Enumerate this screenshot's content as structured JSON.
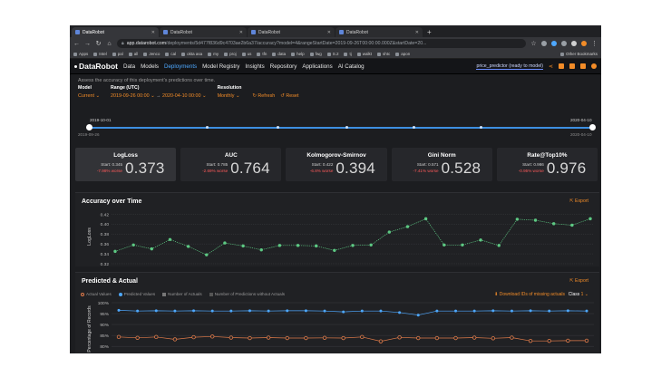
{
  "browser": {
    "tabs": [
      {
        "label": "DataRobot",
        "active": true
      },
      {
        "label": "DataRobot",
        "active": false
      },
      {
        "label": "DataRobot",
        "active": false
      },
      {
        "label": "DataRobot",
        "active": false
      }
    ],
    "new_tab": "+",
    "url_host": "app.datarobot.com",
    "url_path": "/deployments/5d477f836d9c4703ae2b6a37/accuracy?model=4&rangeStartDate=2019-09-26T00:00:00.000Z&startDate=20...",
    "bookmarks": [
      "Apps",
      "Intel",
      "pal",
      "all",
      "Jenco",
      "cal",
      "okta asa",
      "my",
      "proj",
      "us",
      "tfn",
      "data",
      "help",
      "fwg",
      "S.2",
      "tj",
      "walkt",
      "shtc",
      "apon"
    ],
    "bookmarks_other": "Other Bookmarks"
  },
  "app": {
    "logo": "DataRobot",
    "nav": [
      "Data",
      "Models",
      "Deployments",
      "Model Registry",
      "Insights",
      "Repository",
      "Applications",
      "AI Catalog"
    ],
    "active_nav": "Deployments",
    "deployment_name": "price_predictor (ready to model)",
    "accent": "#f28c28"
  },
  "page": {
    "description": "Assess the accuracy of this deployment's predictions over time.",
    "model_label": "Model",
    "model_value": "Current",
    "range_label": "Range (UTC)",
    "range_start": "2019-09-26  00:00",
    "range_arrow": "→",
    "range_end": "2020-04-10  00:00",
    "resolution_label": "Resolution",
    "resolution_value": "Monthly",
    "refresh_label": "Refresh",
    "reset_label": "Reset",
    "slider_start_top": "2019-10-01",
    "slider_start_bottom": "2019-09-26",
    "slider_end_top": "2020-04-10",
    "slider_end_bottom": "2020-04-10"
  },
  "metrics": [
    {
      "name": "LogLoss",
      "start": "Start: 0.345",
      "change": "-7.98% worse",
      "value": "0.373",
      "selected": true
    },
    {
      "name": "AUC",
      "start": "Start: 0.785",
      "change": "-2.69% worse",
      "value": "0.764",
      "selected": false
    },
    {
      "name": "Kolmogorov-Smirnov",
      "start": "Start: 0.422",
      "change": "-6.8% worse",
      "value": "0.394",
      "selected": false
    },
    {
      "name": "Gini Norm",
      "start": "Start: 0.571",
      "change": "-7.41% worse",
      "value": "0.528",
      "selected": false
    },
    {
      "name": "Rate@Top10%",
      "start": "Start: 0.986",
      "change": "-0.95% worse",
      "value": "0.976",
      "selected": false
    }
  ],
  "accuracy_panel": {
    "title": "Accuracy over Time",
    "export": "Export"
  },
  "predicted_panel": {
    "title": "Predicted & Actual",
    "export": "Export",
    "legend": [
      "Actual Values",
      "Predicted Values",
      "Number of Actuals",
      "Number of Predictions without Actuals"
    ],
    "download": "Download IDs of missing actuals",
    "class_label": "Class",
    "class_value": "1"
  },
  "chart_data": [
    {
      "type": "line",
      "title": "Accuracy over Time",
      "ylabel": "LogLoss",
      "ylim": [
        0.32,
        0.43
      ],
      "yticks": [
        "0.42",
        "0.40",
        "0.38",
        "0.36",
        "0.34",
        "0.32"
      ],
      "grid": true,
      "series": [
        {
          "values": [
            0.345,
            0.358,
            0.35,
            0.369,
            0.355,
            0.338,
            0.362,
            0.356,
            0.348,
            0.357,
            0.357,
            0.356,
            0.347,
            0.357,
            0.358,
            0.384,
            0.395,
            0.411,
            0.358,
            0.358,
            0.368,
            0.357,
            0.41,
            0.408,
            0.401,
            0.398,
            0.411
          ],
          "color": "#5dc983"
        }
      ]
    },
    {
      "type": "line",
      "title": "Predicted & Actual",
      "ylabel": "Percentage of Records",
      "ylim": [
        0.78,
        1.0
      ],
      "yticks": [
        "100%",
        "95%",
        "90%",
        "85%",
        "80%"
      ],
      "series": [
        {
          "name": "Predicted Values",
          "values": [
            0.965,
            0.962,
            0.963,
            0.962,
            0.963,
            0.962,
            0.962,
            0.963,
            0.962,
            0.963,
            0.963,
            0.962,
            0.958,
            0.962,
            0.962,
            0.955,
            0.943,
            0.962,
            0.962,
            0.962,
            0.963,
            0.962,
            0.963,
            0.962,
            0.963,
            0.962
          ],
          "color": "#4ea8ff"
        },
        {
          "name": "Actual Values",
          "values": [
            0.843,
            0.839,
            0.843,
            0.832,
            0.842,
            0.845,
            0.84,
            0.838,
            0.84,
            0.838,
            0.838,
            0.839,
            0.838,
            0.843,
            0.823,
            0.841,
            0.838,
            0.838,
            0.838,
            0.84,
            0.837,
            0.84,
            0.825,
            0.825,
            0.826,
            0.826
          ],
          "color": "#e07b4a"
        }
      ]
    }
  ]
}
